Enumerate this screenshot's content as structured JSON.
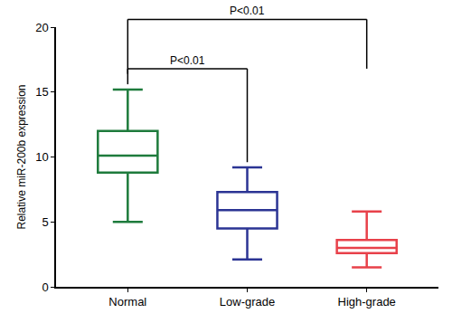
{
  "chart_data": {
    "type": "box",
    "y_label": "Relative miR-200b expression",
    "ylim": [
      0,
      20
    ],
    "yticks": [
      0,
      5,
      10,
      15,
      20
    ],
    "grid": false,
    "boxes": [
      {
        "category": "Normal",
        "color": "#1e7b3c",
        "min": 5.0,
        "q1": 8.8,
        "median": 10.1,
        "q3": 12.0,
        "max": 15.2
      },
      {
        "category": "Low-grade",
        "color": "#2b3494",
        "min": 2.1,
        "q1": 4.5,
        "median": 5.9,
        "q3": 7.3,
        "max": 9.2
      },
      {
        "category": "High-grade",
        "color": "#e8414a",
        "min": 1.5,
        "q1": 2.6,
        "median": 3.0,
        "q3": 3.6,
        "max": 5.8
      }
    ],
    "comparisons": [
      {
        "from": "Normal",
        "to": "Low-grade",
        "label": "P<0.01"
      },
      {
        "from": "Normal",
        "to": "High-grade",
        "label": "P<0.01"
      }
    ]
  }
}
